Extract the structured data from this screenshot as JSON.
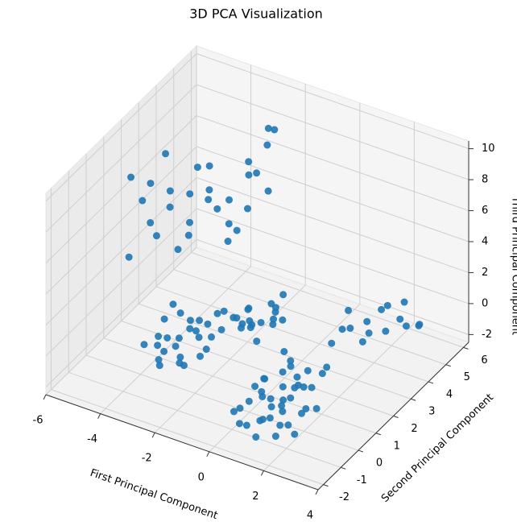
{
  "chart_data": {
    "type": "scatter3d",
    "title": "3D PCA Visualization",
    "xlabel": "First Principal Component",
    "ylabel": "Second Principal Component",
    "zlabel": "Third Principal Component",
    "color": "#1f77b4",
    "xlim": [
      -6,
      4
    ],
    "ylim": [
      -2.3,
      6.3
    ],
    "zlim": [
      -2.5,
      10.5
    ],
    "xticks": [
      -6,
      -4,
      -2,
      0,
      2,
      4
    ],
    "yticks": [
      -2,
      -1,
      0,
      1,
      2,
      3,
      4,
      5,
      6
    ],
    "zticks": [
      -2,
      0,
      2,
      4,
      6,
      8,
      10
    ],
    "grid": true,
    "x": [
      0.2,
      0.5,
      0.8,
      1.1,
      1.4,
      1.7,
      2.0,
      2.3,
      0.4,
      0.9,
      1.3,
      1.8,
      2.2,
      0.1,
      0.6,
      1.0,
      1.5,
      1.9,
      2.4,
      0.3,
      0.7,
      1.2,
      1.6,
      2.1,
      0.5,
      1.0,
      1.4,
      1.8,
      0.2,
      0.8,
      1.3,
      1.7,
      2.0,
      0.6,
      1.1,
      1.5,
      2.3,
      0.9,
      1.6,
      1.2,
      -4.0,
      -3.7,
      -3.4,
      -3.1,
      -2.8,
      -2.5,
      -2.2,
      -3.9,
      -3.5,
      -3.0,
      -2.6,
      -2.3,
      -3.8,
      -3.3,
      -2.9,
      -2.4,
      -3.6,
      -3.2,
      -2.7,
      -2.1,
      -3.9,
      -3.4,
      -2.8,
      -3.1,
      -2.5,
      -1.8,
      -1.5,
      -1.2,
      -0.9,
      -0.6,
      -0.3,
      -1.7,
      -1.3,
      -1.0,
      -0.7,
      -0.4,
      -1.6,
      -1.1,
      -0.8,
      -0.5,
      -1.4,
      -0.2,
      -1.9,
      -0.9,
      -0.6,
      1.6,
      1.9,
      2.2,
      2.5,
      2.8,
      1.7,
      2.0,
      2.3,
      2.6,
      2.9,
      1.8,
      2.1,
      2.4,
      2.7,
      3.0,
      -5.0,
      -4.6,
      -4.2,
      -3.8,
      -3.4,
      -3.0,
      -2.6,
      -2.2,
      -4.8,
      -4.4,
      -4.0,
      -3.6,
      -3.2,
      -2.8,
      -2.4,
      -5.2,
      -4.7,
      -4.3,
      -3.9,
      -3.5,
      -3.1,
      -2.7,
      -2.3,
      -4.9,
      -4.5,
      -4.1,
      -3.7,
      -3.3,
      -2.9,
      -2.5
    ],
    "y": [
      -1.2,
      -0.8,
      -1.4,
      -0.5,
      -1.0,
      -0.3,
      -0.9,
      -0.6,
      0.2,
      0.5,
      -0.1,
      0.3,
      -0.2,
      -0.7,
      -1.5,
      0.8,
      1.0,
      0.6,
      0.1,
      0.4,
      -0.4,
      -1.1,
      -0.6,
      0.9,
      1.2,
      -0.3,
      0.4,
      -1.3,
      0.0,
      1.1,
      0.7,
      -0.9,
      1.3,
      -0.2,
      0.2,
      -0.5,
      -1.0,
      -0.8,
      0.3,
      -1.5,
      0.2,
      0.5,
      0.1,
      0.8,
      0.4,
      1.0,
      0.6,
      1.2,
      1.5,
      1.8,
      0.3,
      1.4,
      0.7,
      0.0,
      1.1,
      1.9,
      0.9,
      1.6,
      0.2,
      0.8,
      1.7,
      0.4,
      1.3,
      0.6,
      1.5,
      1.2,
      1.6,
      2.0,
      1.4,
      2.3,
      1.8,
      2.6,
      1.1,
      2.8,
      1.5,
      2.1,
      2.4,
      1.3,
      1.9,
      2.7,
      1.7,
      2.2,
      1.5,
      2.9,
      1.0,
      2.2,
      2.8,
      3.4,
      4.0,
      4.6,
      3.0,
      3.6,
      4.2,
      4.8,
      5.2,
      2.5,
      3.2,
      3.8,
      4.4,
      5.0,
      1.0,
      1.5,
      2.0,
      2.5,
      3.0,
      3.5,
      4.0,
      4.5,
      1.8,
      2.3,
      2.8,
      3.3,
      3.8,
      4.3,
      4.8,
      1.2,
      2.0,
      2.6,
      3.1,
      3.6,
      4.1,
      4.6,
      5.0,
      1.5,
      2.2,
      2.9,
      3.4,
      3.9,
      4.4,
      4.9
    ],
    "z": [
      -1.0,
      -0.6,
      -1.3,
      -0.4,
      -0.9,
      -0.2,
      -1.1,
      -0.5,
      -0.3,
      0.1,
      -0.8,
      -0.1,
      -0.7,
      -1.4,
      -1.2,
      0.2,
      0.0,
      -0.4,
      -0.9,
      -0.6,
      -0.3,
      -1.0,
      -0.8,
      0.3,
      0.4,
      -1.2,
      -0.5,
      -1.5,
      -0.7,
      0.1,
      -0.2,
      -1.3,
      0.2,
      -0.9,
      -0.4,
      -0.6,
      -1.4,
      -1.6,
      -0.1,
      -1.7,
      -0.8,
      -1.0,
      -1.3,
      -0.5,
      -1.1,
      -0.3,
      -0.9,
      -0.2,
      0.1,
      -0.4,
      -1.4,
      -0.6,
      -0.7,
      -1.5,
      -0.1,
      0.3,
      -0.9,
      -0.3,
      -1.2,
      -0.6,
      0.2,
      -1.1,
      -0.4,
      -0.8,
      0.0,
      0.4,
      0.9,
      0.2,
      1.3,
      0.6,
      1.0,
      0.3,
      1.6,
      0.8,
      0.0,
      1.4,
      0.5,
      1.1,
      0.7,
      1.8,
      0.2,
      0.9,
      1.2,
      0.5,
      1.5,
      0.5,
      1.0,
      0.2,
      1.5,
      -0.3,
      1.8,
      0.6,
      -0.5,
      0.9,
      -0.8,
      1.2,
      -0.2,
      1.4,
      0.3,
      -0.6,
      8.5,
      7.8,
      7.0,
      6.5,
      8.0,
      5.5,
      6.8,
      9.5,
      4.8,
      5.5,
      4.2,
      6.0,
      3.5,
      7.2,
      5.0,
      3.0,
      3.8,
      2.5,
      7.5,
      4.5,
      2.8,
      6.2,
      8.8,
      6.5,
      9.0,
      3.2,
      5.2,
      2.2,
      4.0,
      7.8
    ]
  }
}
